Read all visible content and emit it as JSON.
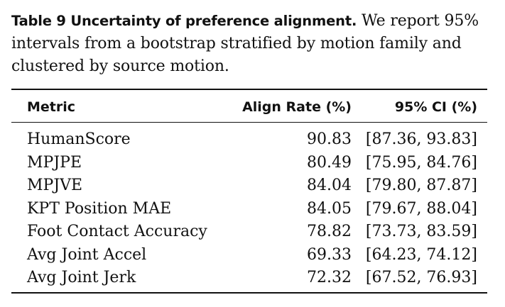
{
  "caption": {
    "label": "Table 9  Uncertainty of preference alignment.",
    "text": " We report 95% intervals from a bootstrap stratified by motion family and clustered by source motion."
  },
  "table": {
    "headers": {
      "metric": "Metric",
      "align_rate": "Align Rate (%)",
      "ci": "95% CI (%)"
    },
    "rows": [
      {
        "metric": "HumanScore",
        "align_rate": "90.83",
        "ci": "[87.36, 93.83]"
      },
      {
        "metric": "MPJPE",
        "align_rate": "80.49",
        "ci": "[75.95, 84.76]"
      },
      {
        "metric": "MPJVE",
        "align_rate": "84.04",
        "ci": "[79.80, 87.87]"
      },
      {
        "metric": "KPT Position MAE",
        "align_rate": "84.05",
        "ci": "[79.67, 88.04]"
      },
      {
        "metric": "Foot Contact Accuracy",
        "align_rate": "78.82",
        "ci": "[73.73, 83.59]"
      },
      {
        "metric": "Avg Joint Accel",
        "align_rate": "69.33",
        "ci": "[64.23, 74.12]"
      },
      {
        "metric": "Avg Joint Jerk",
        "align_rate": "72.32",
        "ci": "[67.52, 76.93]"
      }
    ]
  }
}
